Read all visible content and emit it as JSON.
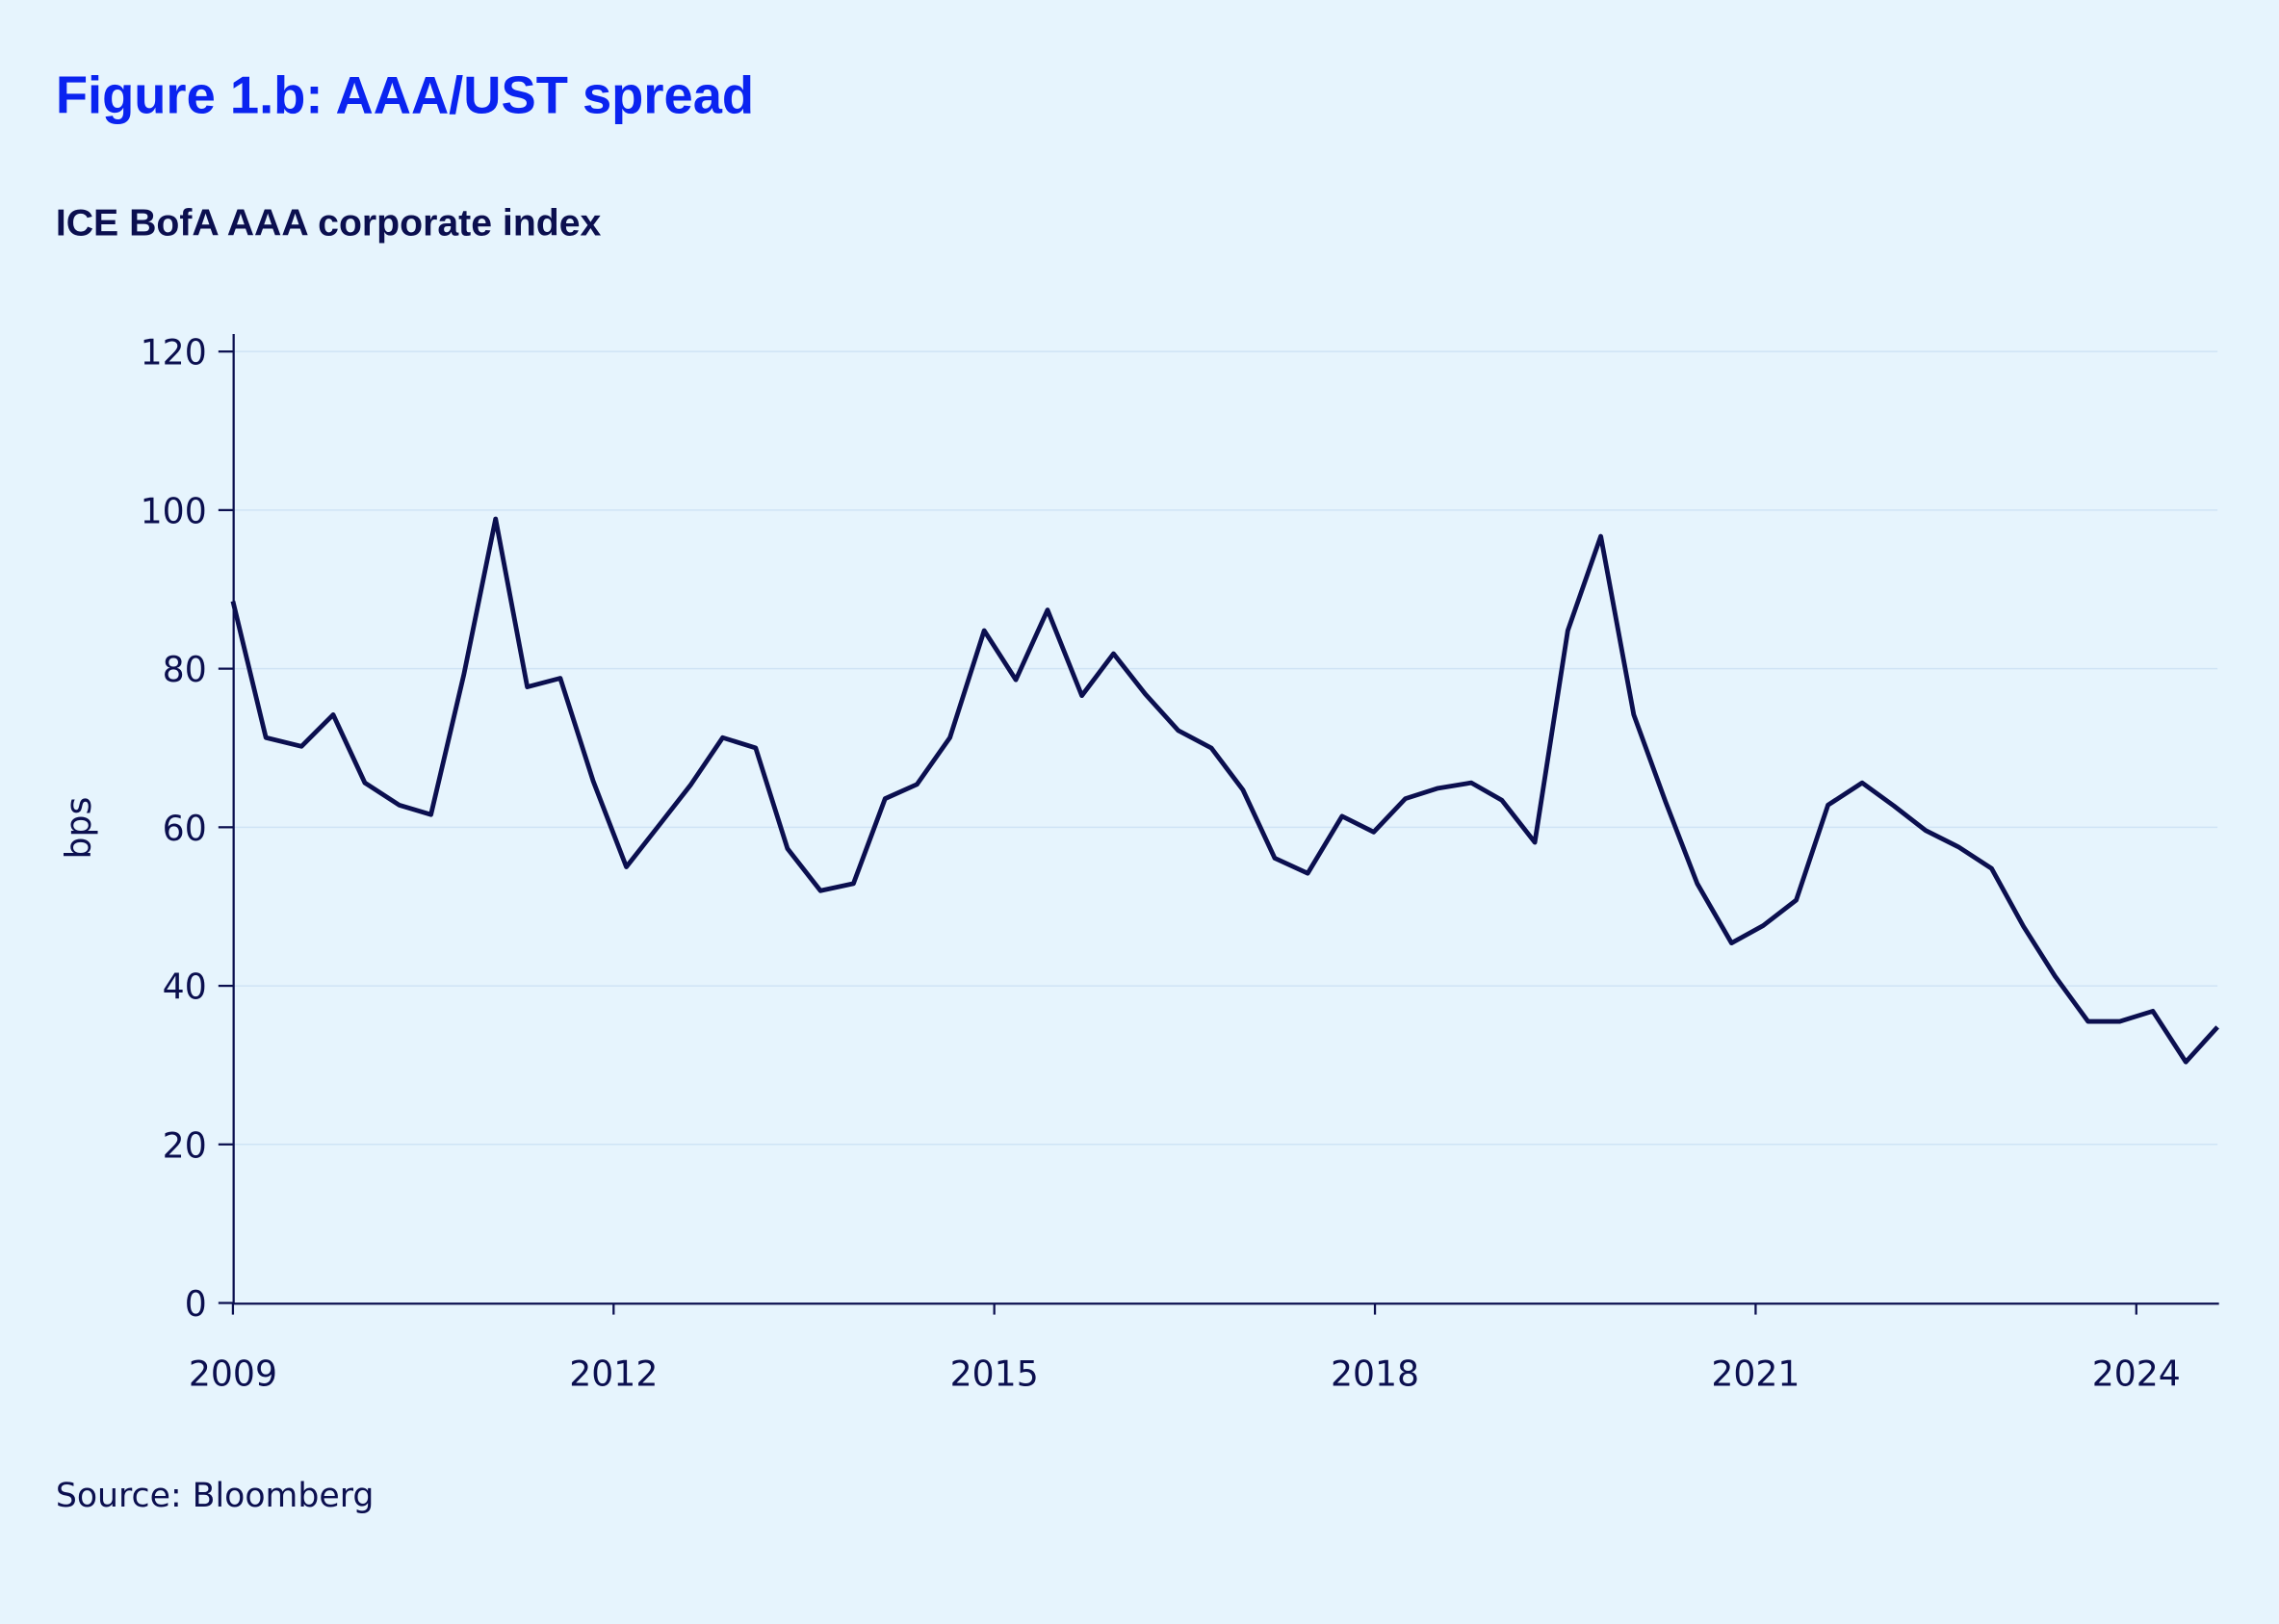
{
  "colors": {
    "background": "#e6f4fd",
    "title": "#0a23f0",
    "text": "#0b0f4f",
    "line": "#0b0f4f",
    "grid": "#cfe3f5"
  },
  "chart_data": {
    "type": "line",
    "title": "Figure 1.b: AAA/UST spread",
    "subtitle": "ICE BofA AAA corporate index",
    "xlabel": "",
    "ylabel": "bps",
    "source": "Source: Bloomberg",
    "xlim": [
      2009,
      2024.64
    ],
    "ylim": [
      0,
      120
    ],
    "grid": true,
    "yticks": [
      0,
      20,
      40,
      60,
      80,
      100,
      120
    ],
    "xticks": [
      2009,
      2012,
      2015,
      2018,
      2021,
      2024
    ],
    "series": [
      {
        "name": "AAA/UST spread",
        "x": [
          2009.0,
          2009.26,
          2009.54,
          2009.79,
          2010.04,
          2010.31,
          2010.56,
          2010.82,
          2011.07,
          2011.32,
          2011.58,
          2011.84,
          2012.1,
          2012.36,
          2012.61,
          2012.86,
          2013.12,
          2013.37,
          2013.63,
          2013.89,
          2014.14,
          2014.39,
          2014.65,
          2014.92,
          2015.17,
          2015.42,
          2015.69,
          2015.94,
          2016.19,
          2016.45,
          2016.71,
          2016.96,
          2017.21,
          2017.47,
          2017.74,
          2017.99,
          2018.24,
          2018.49,
          2018.76,
          2019.0,
          2019.26,
          2019.52,
          2019.78,
          2020.04,
          2020.29,
          2020.54,
          2020.81,
          2021.06,
          2021.32,
          2021.57,
          2021.84,
          2022.09,
          2022.34,
          2022.6,
          2022.86,
          2023.11,
          2023.36,
          2023.62,
          2023.87,
          2024.13,
          2024.39,
          2024.64
        ],
        "y": [
          88.5,
          71.3,
          70.2,
          74.2,
          65.6,
          62.8,
          61.6,
          79.3,
          98.9,
          77.7,
          78.8,
          65.8,
          55.0,
          60.3,
          65.4,
          71.3,
          70.0,
          57.3,
          52.0,
          52.9,
          63.6,
          65.4,
          71.3,
          84.8,
          78.6,
          87.4,
          76.6,
          81.9,
          76.8,
          72.2,
          70.0,
          64.7,
          56.1,
          54.2,
          61.4,
          59.4,
          63.6,
          64.9,
          65.6,
          63.4,
          58.1,
          84.8,
          96.7,
          74.2,
          63.2,
          52.9,
          45.4,
          47.6,
          50.8,
          62.8,
          65.6,
          62.7,
          59.6,
          57.5,
          54.8,
          47.5,
          41.2,
          35.5,
          35.5,
          36.8,
          30.4,
          34.8
        ]
      }
    ]
  }
}
